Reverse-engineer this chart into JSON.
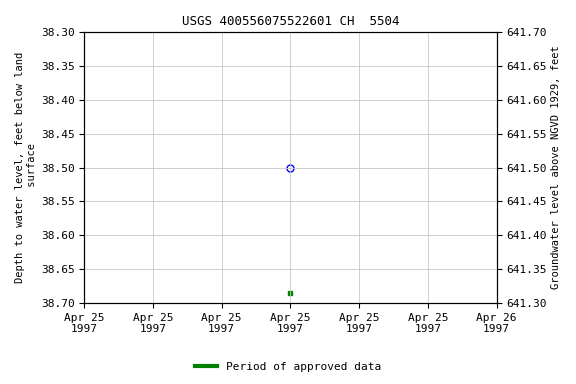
{
  "title": "USGS 400556075522601 CH  5504",
  "left_ylabel": "Depth to water level, feet below land\n surface",
  "right_ylabel": "Groundwater level above NGVD 1929, feet",
  "ylim_left": [
    38.7,
    38.3
  ],
  "ylim_right": [
    641.3,
    641.7
  ],
  "left_yticks": [
    38.3,
    38.35,
    38.4,
    38.45,
    38.5,
    38.55,
    38.6,
    38.65,
    38.7
  ],
  "right_yticks": [
    641.7,
    641.65,
    641.6,
    641.55,
    641.5,
    641.45,
    641.4,
    641.35,
    641.3
  ],
  "point1_x_hours": 12.0,
  "point1_y": 38.5,
  "point1_color": "#0000ff",
  "point1_marker": "o",
  "point1_fillstyle": "none",
  "point1_markersize": 5,
  "point2_x_hours": 12.0,
  "point2_y": 38.685,
  "point2_color": "#008000",
  "point2_marker": "s",
  "point2_size": 3,
  "xlim": [
    0,
    24
  ],
  "xtick_positions": [
    0,
    4,
    8,
    12,
    16,
    20,
    24
  ],
  "xtick_labels": [
    "Apr 25\n1997",
    "Apr 25\n1997",
    "Apr 25\n1997",
    "Apr 25\n1997",
    "Apr 25\n1997",
    "Apr 25\n1997",
    "Apr 26\n1997"
  ],
  "background_color": "#ffffff",
  "grid_color": "#c8c8c8",
  "legend_label": "Period of approved data",
  "legend_color": "#008000",
  "title_fontsize": 9,
  "tick_fontsize": 8,
  "ylabel_fontsize": 7.5,
  "legend_fontsize": 8,
  "font_family": "monospace"
}
